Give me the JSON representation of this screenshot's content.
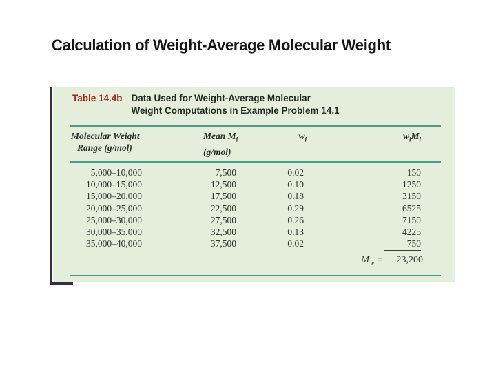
{
  "slide": {
    "title": "Calculation of Weight-Average Molecular Weight"
  },
  "table": {
    "label": "Table 14.4b",
    "caption_line1": "Data Used for Weight-Average Molecular",
    "caption_line2": "Weight Computations in Example Problem 14.1",
    "columns": {
      "col1": {
        "line1": "Molecular Weight",
        "line2": "Range (g/mol)"
      },
      "col2": {
        "line1_pre": "Mean ",
        "line1_sym": "M",
        "line1_sub": "i",
        "line2": "(g/mol)"
      },
      "col3": {
        "sym": "w",
        "sub": "i"
      },
      "col4": {
        "sym1": "w",
        "sub1": "i",
        "sym2": "M",
        "sub2": "i"
      }
    },
    "rows": [
      {
        "range": "5,000–10,000",
        "mean": "7,500",
        "wi": "0.02",
        "wimi": "150"
      },
      {
        "range": "10,000–15,000",
        "mean": "12,500",
        "wi": "0.10",
        "wimi": "1250"
      },
      {
        "range": "15,000–20,000",
        "mean": "17,500",
        "wi": "0.18",
        "wimi": "3150"
      },
      {
        "range": "20,000–25,000",
        "mean": "22,500",
        "wi": "0.29",
        "wimi": "6525"
      },
      {
        "range": "25,000–30,000",
        "mean": "27,500",
        "wi": "0.26",
        "wimi": "7150"
      },
      {
        "range": "30,000–35,000",
        "mean": "32,500",
        "wi": "0.13",
        "wimi": "4225"
      },
      {
        "range": "35,000–40,000",
        "mean": "37,500",
        "wi": "0.02",
        "wimi": "750"
      }
    ],
    "summary": {
      "symbol": "M",
      "sub": "w",
      "equals": "=",
      "value": "23,200"
    }
  },
  "colors": {
    "panel_background": "#e5eedb",
    "rule_teal": "#4d9c8b",
    "table_label_red": "#a3281c",
    "corner_accent_navy": "#332c4e"
  }
}
